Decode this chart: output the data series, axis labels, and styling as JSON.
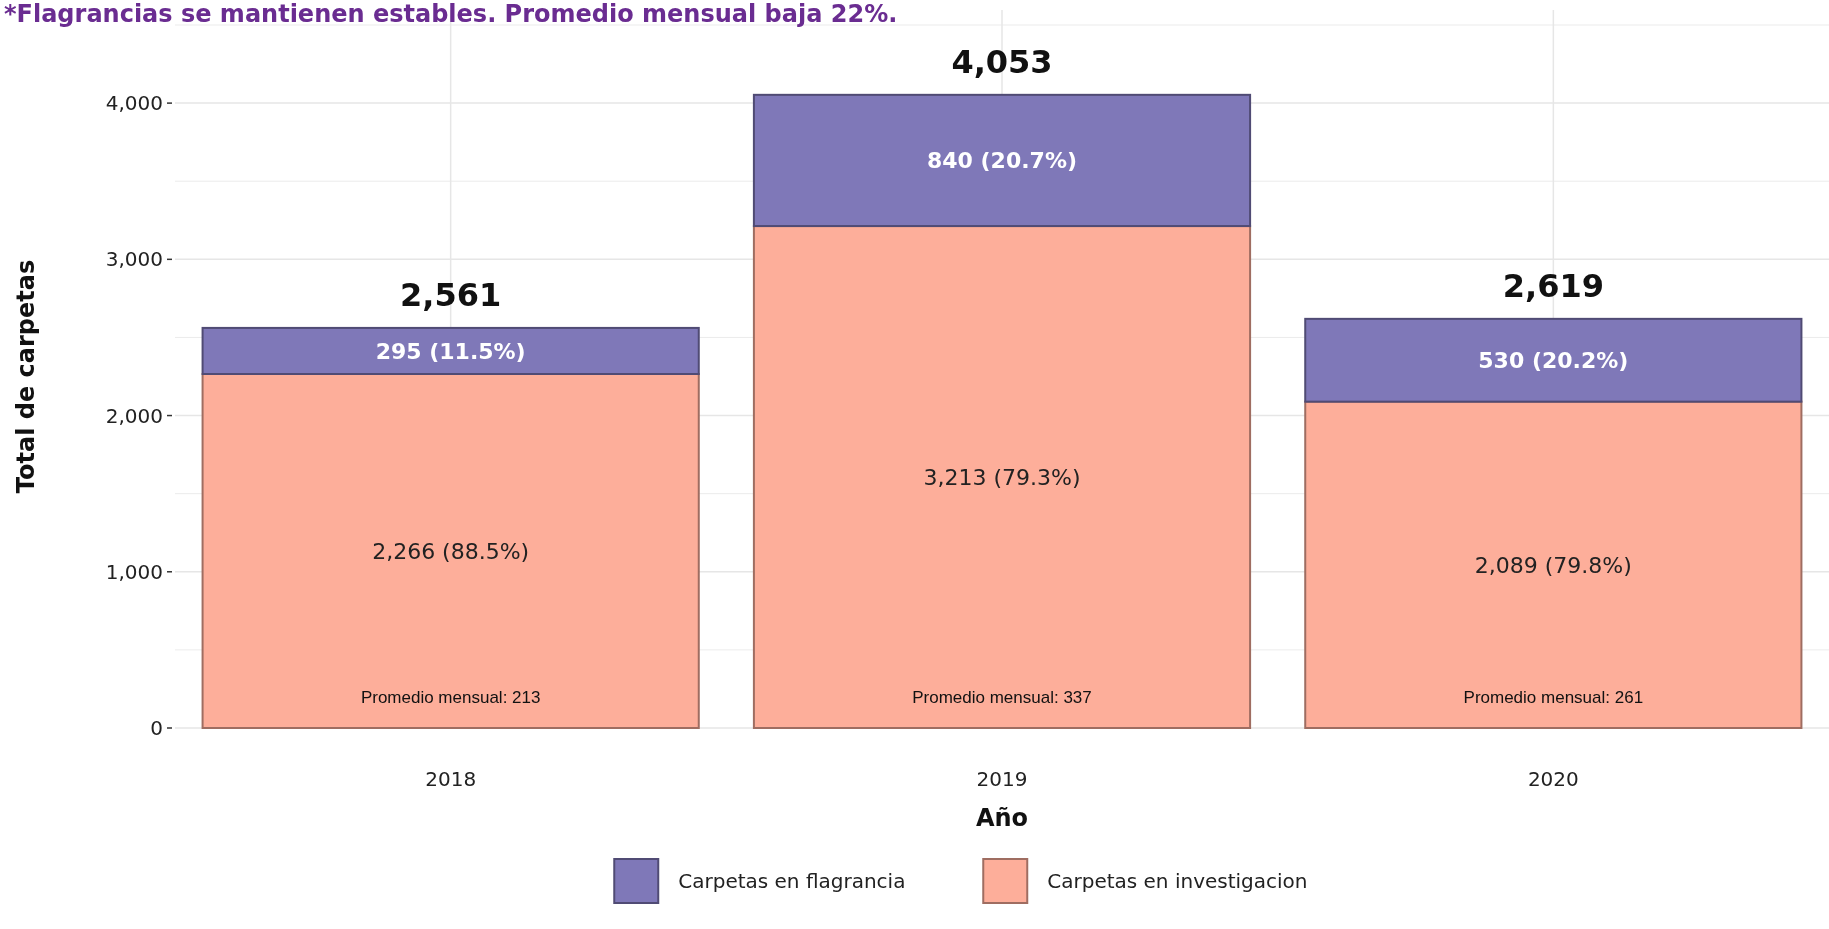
{
  "chart_data": {
    "type": "bar",
    "title": "*Flagrancias se mantienen estables. Promedio mensual baja 22%.",
    "xlabel": "Año",
    "ylabel": "Total de carpetas",
    "categories": [
      "2018",
      "2019",
      "2020"
    ],
    "stacked": true,
    "series": [
      {
        "name": "Carpetas en investigacion",
        "color": "#fdae9a",
        "values": [
          2266,
          3213,
          2089
        ],
        "value_labels": [
          "2,266 (88.5%)",
          "3,213 (79.3%)",
          "2,089 (79.8%)"
        ]
      },
      {
        "name": "Carpetas en flagrancia",
        "color": "#7f78b8",
        "values": [
          295,
          840,
          530
        ],
        "value_labels": [
          "295 (11.5%)",
          "840 (20.7%)",
          "530 (20.2%)"
        ]
      }
    ],
    "totals": [
      "2,561",
      "4,053",
      "2,619"
    ],
    "annotations": [
      "Promedio mensual: 213",
      "Promedio mensual: 337",
      "Promedio mensual: 261"
    ],
    "ylim": [
      0,
      4500
    ],
    "yticks": [
      {
        "value": 0,
        "label": "0"
      },
      {
        "value": 1000,
        "label": "1,000"
      },
      {
        "value": 2000,
        "label": "2,000"
      },
      {
        "value": 3000,
        "label": "3,000"
      },
      {
        "value": 4000,
        "label": "4,000"
      },
      {
        "value": 500,
        "label": null
      },
      {
        "value": 1500,
        "label": null
      },
      {
        "value": 2500,
        "label": null
      },
      {
        "value": 3500,
        "label": null
      },
      {
        "value": 4500,
        "label": null
      }
    ],
    "grid": true,
    "legend": "bottom"
  }
}
